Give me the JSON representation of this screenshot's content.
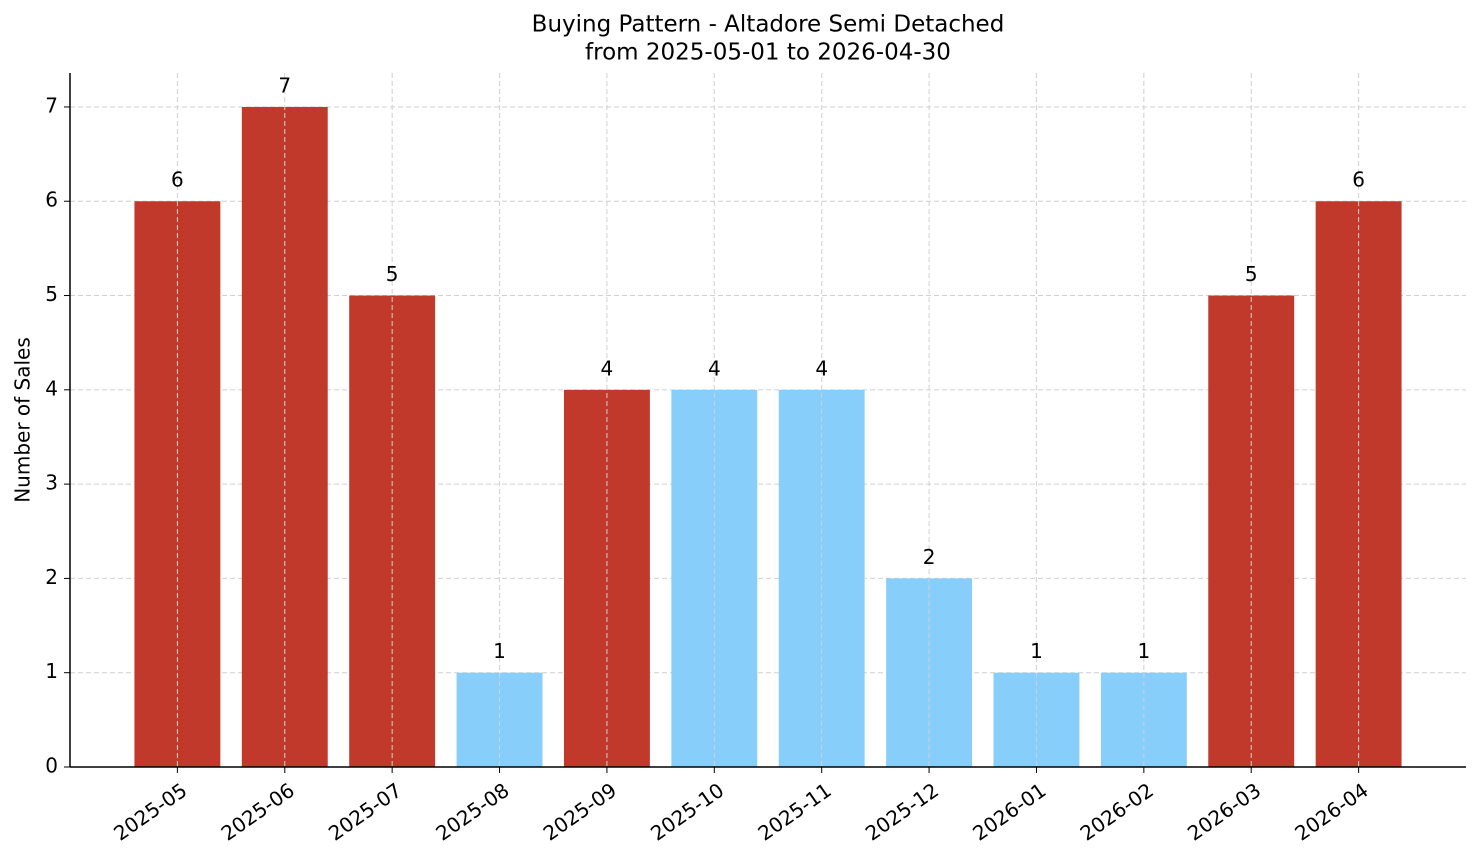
{
  "chart_data": {
    "type": "bar",
    "title": "Buying Pattern - Altadore Semi Detached",
    "subtitle": "from 2025-05-01 to 2026-04-30",
    "y_label": "Number of Sales",
    "categories": [
      "2025-05",
      "2025-06",
      "2025-07",
      "2025-08",
      "2025-09",
      "2025-10",
      "2025-11",
      "2025-12",
      "2026-01",
      "2026-02",
      "2026-03",
      "2026-04"
    ],
    "values": [
      6,
      7,
      5,
      1,
      4,
      4,
      4,
      2,
      1,
      1,
      5,
      6
    ],
    "colors": [
      "#c0392b",
      "#c0392b",
      "#c0392b",
      "#87cefa",
      "#c0392b",
      "#87cefa",
      "#87cefa",
      "#87cefa",
      "#87cefa",
      "#87cefa",
      "#c0392b",
      "#c0392b"
    ],
    "ylim": [
      0,
      7.36
    ],
    "yticks": [
      0,
      1,
      2,
      3,
      4,
      5,
      6,
      7
    ],
    "grid": true
  }
}
